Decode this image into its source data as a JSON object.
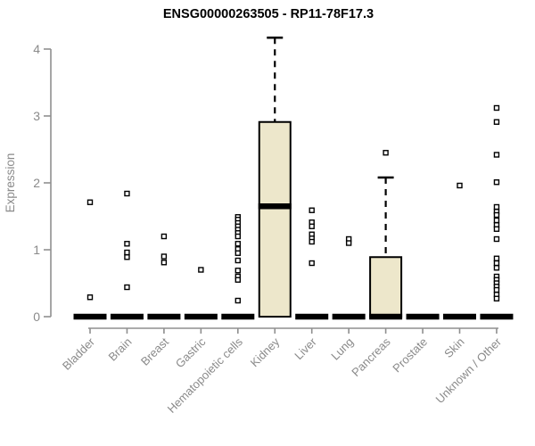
{
  "title": "ENSG00000263505 - RP11-78F17.3",
  "chart_data": {
    "type": "boxplot",
    "title": "ENSG00000263505 - RP11-78F17.3",
    "xlabel": "",
    "ylabel": "Expression",
    "ylim": [
      0,
      4
    ],
    "yticks": [
      0,
      1,
      2,
      3,
      4
    ],
    "grid": false,
    "legend": "none",
    "categories": [
      "Bladder",
      "Brain",
      "Breast",
      "Gastric",
      "Hematopoietic cells",
      "Kidney",
      "Liver",
      "Lung",
      "Pancreas",
      "Prostate",
      "Skin",
      "Unknown / Other"
    ],
    "series": [
      {
        "category": "Bladder",
        "collapsed": true,
        "median": 0,
        "q1": 0,
        "q3": 0,
        "whisker_low": 0,
        "whisker_high": 0,
        "outliers": [
          1.71,
          0.29
        ]
      },
      {
        "category": "Brain",
        "collapsed": true,
        "median": 0,
        "q1": 0,
        "q3": 0,
        "whisker_low": 0,
        "whisker_high": 0,
        "outliers": [
          1.84,
          1.09,
          0.96,
          0.89,
          0.44
        ]
      },
      {
        "category": "Breast",
        "collapsed": true,
        "median": 0,
        "q1": 0,
        "q3": 0,
        "whisker_low": 0,
        "whisker_high": 0,
        "outliers": [
          1.2,
          0.9,
          0.81
        ]
      },
      {
        "category": "Gastric",
        "collapsed": true,
        "median": 0,
        "q1": 0,
        "q3": 0,
        "whisker_low": 0,
        "whisker_high": 0,
        "outliers": [
          0.7
        ]
      },
      {
        "category": "Hematopoietic cells",
        "collapsed": true,
        "median": 0,
        "q1": 0,
        "q3": 0,
        "whisker_low": 0,
        "whisker_high": 0,
        "outliers": [
          1.49,
          1.45,
          1.4,
          1.35,
          1.3,
          1.25,
          1.2,
          1.09,
          1.01,
          0.95,
          0.84,
          0.69,
          0.6,
          0.55,
          0.24
        ]
      },
      {
        "category": "Kidney",
        "collapsed": false,
        "median": 1.65,
        "q1": 0,
        "q3": 2.91,
        "whisker_low": 0,
        "whisker_high": 4.17,
        "outliers": []
      },
      {
        "category": "Liver",
        "collapsed": true,
        "median": 0,
        "q1": 0,
        "q3": 0,
        "whisker_low": 0,
        "whisker_high": 0,
        "outliers": [
          1.59,
          1.41,
          1.35,
          1.23,
          1.17,
          1.12,
          0.8
        ]
      },
      {
        "category": "Lung",
        "collapsed": true,
        "median": 0,
        "q1": 0,
        "q3": 0,
        "whisker_low": 0,
        "whisker_high": 0,
        "outliers": [
          1.16,
          1.1
        ]
      },
      {
        "category": "Pancreas",
        "collapsed": false,
        "median": 0,
        "q1": 0,
        "q3": 0.89,
        "whisker_low": 0,
        "whisker_high": 2.08,
        "outliers": [
          2.45
        ]
      },
      {
        "category": "Prostate",
        "collapsed": true,
        "median": 0,
        "q1": 0,
        "q3": 0,
        "whisker_low": 0,
        "whisker_high": 0,
        "outliers": []
      },
      {
        "category": "Skin",
        "collapsed": true,
        "median": 0,
        "q1": 0,
        "q3": 0,
        "whisker_low": 0,
        "whisker_high": 0,
        "outliers": [
          1.96
        ]
      },
      {
        "category": "Unknown / Other",
        "collapsed": true,
        "median": 0,
        "q1": 0,
        "q3": 0,
        "whisker_low": 0,
        "whisker_high": 0,
        "outliers": [
          3.12,
          2.91,
          2.42,
          2.01,
          1.64,
          1.57,
          1.52,
          1.44,
          1.37,
          1.31,
          1.16,
          0.87,
          0.8,
          0.73,
          0.6,
          0.55,
          0.5,
          0.45,
          0.4,
          0.33,
          0.27
        ]
      }
    ]
  },
  "colors": {
    "box_fill": "#EDE7CB",
    "box_stroke": "#000000",
    "median": "#000000",
    "whisker": "#000000",
    "outlier_stroke": "#000000",
    "outlier_fill": "#FFFFFF",
    "axis": "#8f8f8f",
    "tick_label": "#8a8a8a",
    "title": "#000000",
    "background": "#FFFFFF"
  }
}
